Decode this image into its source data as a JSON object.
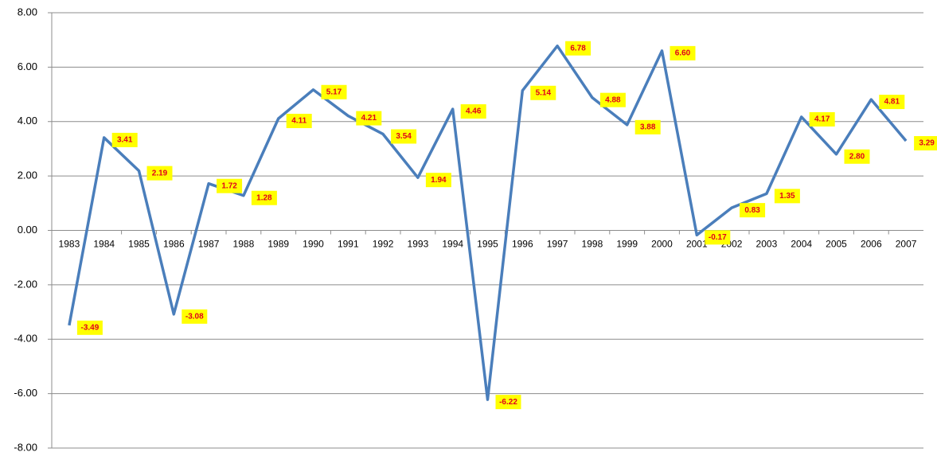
{
  "chart_data": {
    "type": "line",
    "categories": [
      "1983",
      "1984",
      "1985",
      "1986",
      "1987",
      "1988",
      "1989",
      "1990",
      "1991",
      "1992",
      "1993",
      "1994",
      "1995",
      "1996",
      "1997",
      "1998",
      "1999",
      "2000",
      "2001",
      "2002",
      "2003",
      "2004",
      "2005",
      "2006",
      "2007"
    ],
    "values": [
      -3.49,
      3.41,
      2.19,
      -3.08,
      1.72,
      1.28,
      4.11,
      5.17,
      4.21,
      3.54,
      1.94,
      4.46,
      -6.22,
      5.14,
      6.78,
      4.88,
      3.88,
      6.6,
      -0.17,
      0.83,
      1.35,
      4.17,
      2.8,
      4.81,
      3.29
    ],
    "value_labels": [
      "-3.49",
      "3.41",
      "2.19",
      "-3.08",
      "1.72",
      "1.28",
      "4.11",
      "5.17",
      "4.21",
      "3.54",
      "1.94",
      "4.46",
      "-6.22",
      "5.14",
      "6.78",
      "4.88",
      "3.88",
      "6.60",
      "-0.17",
      "0.83",
      "1.35",
      "4.17",
      "2.80",
      "4.81",
      "3.29"
    ],
    "color": "#4a7ebb",
    "ylim": [
      -8,
      8
    ],
    "yticks": [
      {
        "value": -8,
        "label": "-8.00"
      },
      {
        "value": -6,
        "label": "-6.00"
      },
      {
        "value": -4,
        "label": "-4.00"
      },
      {
        "value": -2,
        "label": "-2.00"
      },
      {
        "value": 0,
        "label": "0.00"
      },
      {
        "value": 2,
        "label": "2.00"
      },
      {
        "value": 4,
        "label": "4.00"
      },
      {
        "value": 6,
        "label": "6.00"
      },
      {
        "value": 8,
        "label": "8.00"
      }
    ],
    "grid": true
  }
}
